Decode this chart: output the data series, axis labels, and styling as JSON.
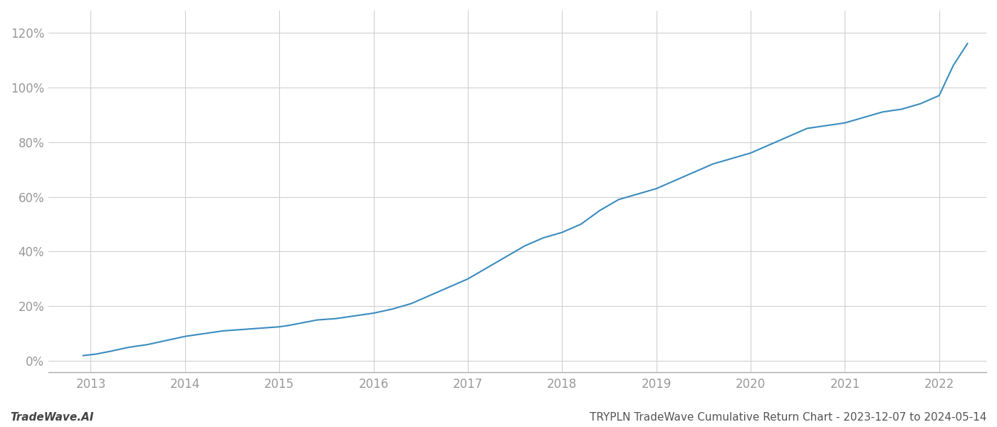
{
  "title": "TRYPLN TradeWave Cumulative Return Chart - 2023-12-07 to 2024-05-14",
  "watermark": "TradeWave.AI",
  "line_color": "#3a8cbf",
  "background_color": "#ffffff",
  "grid_color": "#d0d0d0",
  "x_years": [
    2013,
    2014,
    2015,
    2016,
    2017,
    2018,
    2019,
    2020,
    2021,
    2022
  ],
  "y_ticks": [
    0,
    20,
    40,
    60,
    80,
    100,
    120
  ],
  "xlim": [
    2012.55,
    2022.5
  ],
  "ylim": [
    -4,
    128
  ],
  "data_x": [
    2012.92,
    2013.05,
    2013.2,
    2013.4,
    2013.6,
    2013.8,
    2014.0,
    2014.2,
    2014.4,
    2014.6,
    2014.8,
    2015.0,
    2015.1,
    2015.25,
    2015.4,
    2015.6,
    2015.8,
    2016.0,
    2016.2,
    2016.4,
    2016.6,
    2016.8,
    2017.0,
    2017.2,
    2017.4,
    2017.6,
    2017.8,
    2018.0,
    2018.2,
    2018.4,
    2018.6,
    2018.8,
    2019.0,
    2019.2,
    2019.4,
    2019.6,
    2019.8,
    2020.0,
    2020.2,
    2020.4,
    2020.6,
    2020.8,
    2021.0,
    2021.2,
    2021.4,
    2021.6,
    2021.8,
    2022.0,
    2022.15,
    2022.3
  ],
  "data_y": [
    2,
    2.5,
    3.5,
    5,
    6,
    7.5,
    9,
    10,
    11,
    11.5,
    12,
    12.5,
    13,
    14,
    15,
    15.5,
    16.5,
    17.5,
    19,
    21,
    24,
    27,
    30,
    34,
    38,
    42,
    45,
    47,
    50,
    55,
    59,
    61,
    63,
    66,
    69,
    72,
    74,
    76,
    79,
    82,
    85,
    86,
    87,
    89,
    91,
    92,
    94,
    97,
    108,
    116
  ]
}
